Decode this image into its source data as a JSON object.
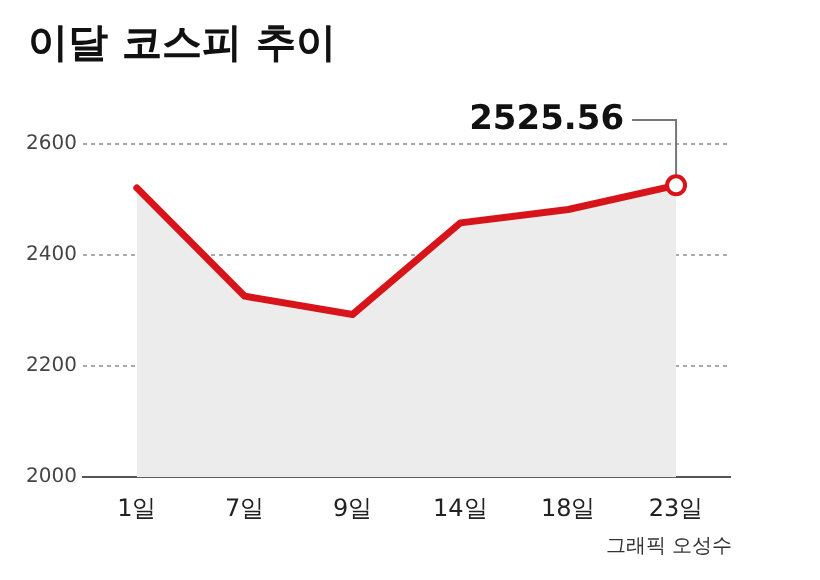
{
  "chart_data": {
    "type": "area",
    "title": "이달 코스피 추이",
    "categories": [
      "1일",
      "7일",
      "9일",
      "14일",
      "18일",
      "23일"
    ],
    "series": [
      {
        "color": "#d7141a",
        "values": [
          2521,
          2326,
          2293,
          2458,
          2482,
          2525.56
        ]
      }
    ],
    "ylim": [
      2000,
      2600
    ],
    "yticks": [
      2000,
      2200,
      2400,
      2600
    ],
    "grid": "y",
    "marker": "none",
    "line_style": "solid",
    "annotations": [
      {
        "text": "2525.56",
        "x": "23일",
        "y": 2525.56
      },
      "그래픽 오성수"
    ]
  }
}
